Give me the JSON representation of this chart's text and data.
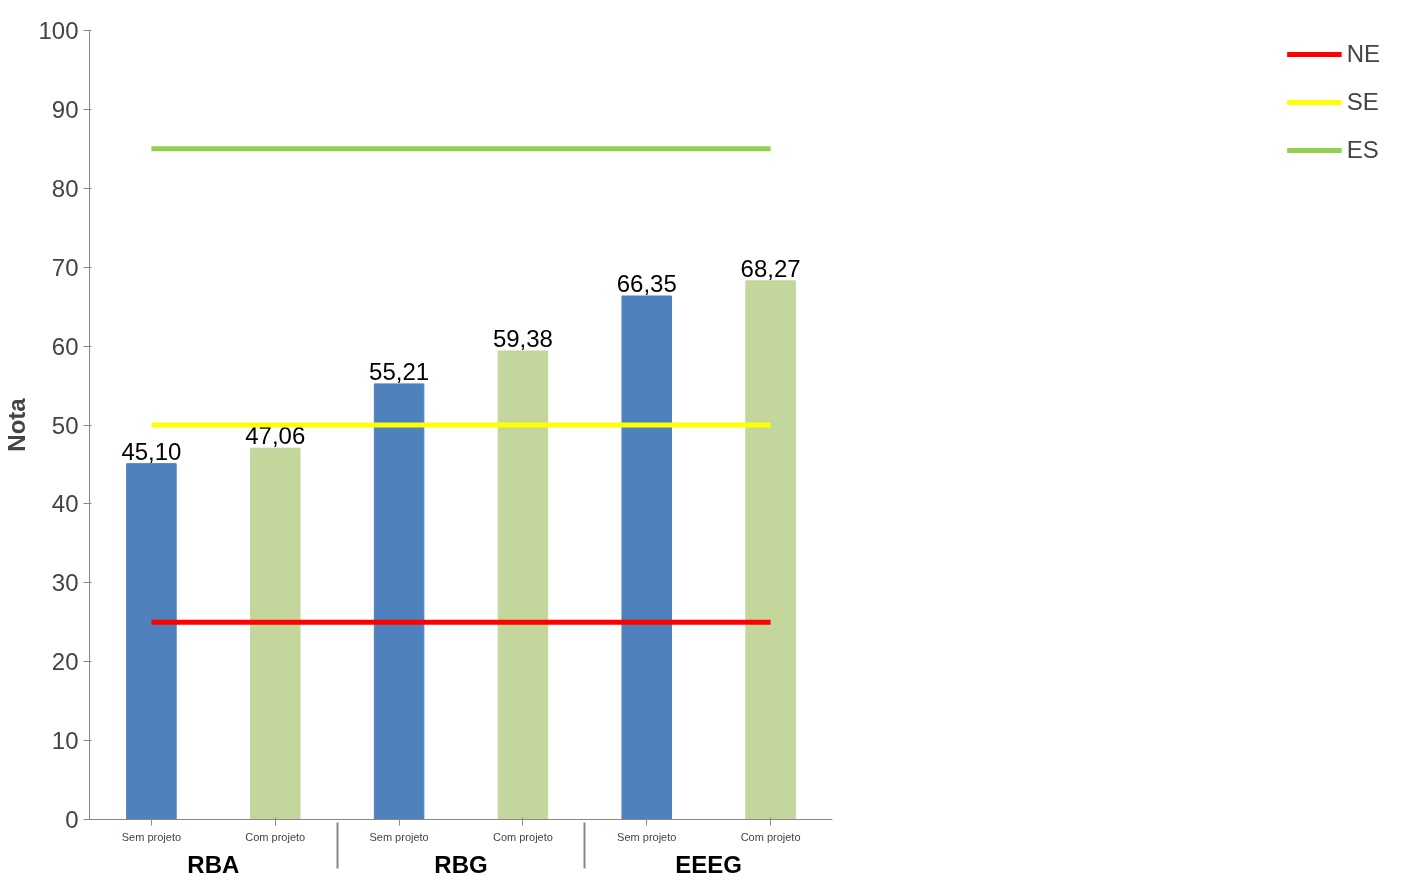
{
  "chart_data": {
    "type": "bar",
    "ylabel": "Nota",
    "categories": [
      "Sem projeto",
      "Com projeto",
      "Sem projeto",
      "Com projeto",
      "Sem projeto",
      "Com projeto"
    ],
    "annotations": [
      "RBA",
      "RBG",
      "EEEG"
    ],
    "values": [
      45.1,
      47.06,
      55.21,
      59.38,
      66.35,
      68.27
    ],
    "colors": [
      "#4f81bd",
      "#c3d69b",
      "#4f81bd",
      "#c3d69b",
      "#4f81bd",
      "#c3d69b"
    ],
    "value_labels": [
      "45,10",
      "47,06",
      "55,21",
      "59,38",
      "66,35",
      "68,27"
    ],
    "series": [
      {
        "name": "NE",
        "type": "line",
        "color": "#ff0000",
        "values": [
          25,
          25,
          25,
          25,
          25,
          25
        ]
      },
      {
        "name": "SE",
        "type": "line",
        "color": "#ffff00",
        "values": [
          50,
          50,
          50,
          50,
          50,
          50
        ]
      },
      {
        "name": "ES",
        "type": "line",
        "color": "#92d050",
        "values": [
          85,
          85,
          85,
          85,
          85,
          85
        ]
      }
    ],
    "ylim": [
      0,
      100
    ],
    "yticks": [
      0,
      10,
      20,
      30,
      40,
      50,
      60,
      70,
      80,
      90,
      100
    ],
    "grid": false,
    "legend": "right"
  }
}
